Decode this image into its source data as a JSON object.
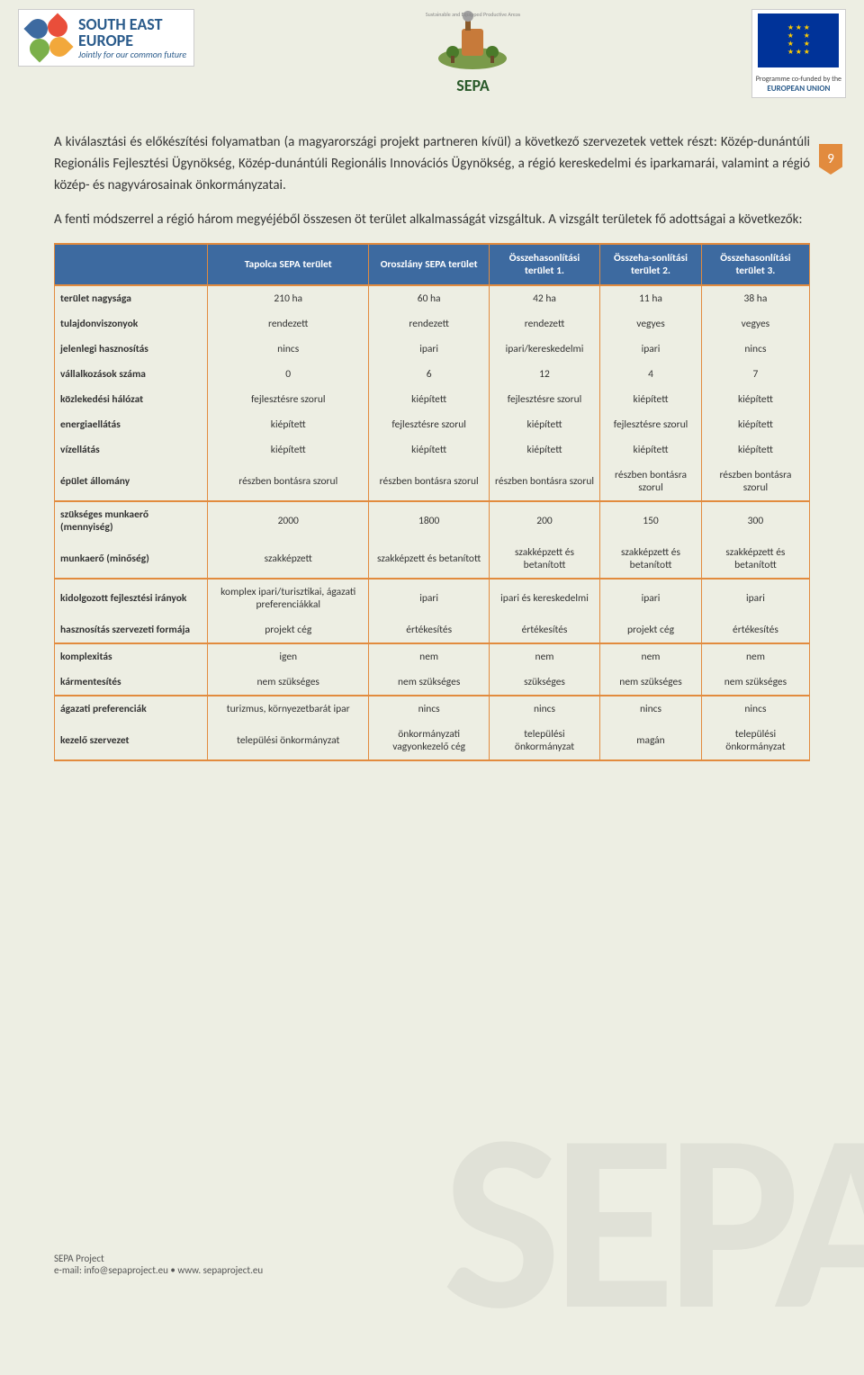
{
  "header": {
    "see_title": "SOUTH EAST",
    "see_title2": "EUROPE",
    "see_tagline": "Jointly for our common future",
    "sepa_label": "SEPA",
    "sepa_arc": "Sustainable and Equipped Productive Areas",
    "eu_caption1": "Programme co-funded by the",
    "eu_caption2": "EUROPEAN UNION"
  },
  "page_number": "9",
  "paragraphs": {
    "p1": "A kiválasztási és előkészítési folyamatban (a magyarországi projekt partneren kívül) a következő szervezetek vettek részt: Közép-dunántúli Regionális Fejlesztési Ügynökség, Közép-dunántúli Regionális Innovációs Ügynökség, a régió kereskedelmi és iparkamarái, valamint a régió közép- és nagyvárosainak önkormányzatai.",
    "p2": "A fenti módszerrel a régió három megyéjéből összesen öt terület alkalmasságát vizsgáltuk. A vizsgált területek fő adottságai a következők:"
  },
  "table": {
    "headers": [
      "",
      "Tapolca SEPA terület",
      "Oroszlány SEPA terület",
      "Összehasonlítási terület 1.",
      "Összeha-sonlítási terület 2.",
      "Összehasonlítási terület 3."
    ],
    "header_bg": "#3d6aa0",
    "border_color": "#e28b3e",
    "rows": [
      {
        "cells": [
          "terület nagysága",
          "210 ha",
          "60 ha",
          "42 ha",
          "11 ha",
          "38 ha"
        ]
      },
      {
        "cells": [
          "tulajdonviszonyok",
          "rendezett",
          "rendezett",
          "rendezett",
          "vegyes",
          "vegyes"
        ]
      },
      {
        "cells": [
          "jelenlegi hasznosítás",
          "nincs",
          "ipari",
          "ipari/kereskedelmi",
          "ipari",
          "nincs"
        ]
      },
      {
        "cells": [
          "vállalkozások száma",
          "0",
          "6",
          "12",
          "4",
          "7"
        ]
      },
      {
        "cells": [
          "közlekedési hálózat",
          "fejlesztésre szorul",
          "kiépített",
          "fejlesztésre szorul",
          "kiépített",
          "kiépített"
        ]
      },
      {
        "cells": [
          "energiaellátás",
          "kiépített",
          "fejlesztésre szorul",
          "kiépített",
          "fejlesztésre szorul",
          "kiépített"
        ]
      },
      {
        "cells": [
          "vízellátás",
          "kiépített",
          "kiépített",
          "kiépített",
          "kiépített",
          "kiépített"
        ]
      },
      {
        "cells": [
          "épület állomány",
          "részben bontásra szorul",
          "részben bontásra szorul",
          "részben bontásra szorul",
          "részben bontásra szorul",
          "részben bontásra szorul"
        ],
        "section_end": true
      },
      {
        "cells": [
          "szükséges munkaerő (mennyiség)",
          "2000",
          "1800",
          "200",
          "150",
          "300"
        ]
      },
      {
        "cells": [
          "munkaerő (minőség)",
          "szakképzett",
          "szakképzett és betanított",
          "szakképzett és betanított",
          "szakképzett és betanított",
          "szakképzett és betanított"
        ],
        "section_end": true
      },
      {
        "cells": [
          "kidolgozott fejlesztési irányok",
          "komplex ipari/turisztikai, ágazati preferenciákkal",
          "ipari",
          "ipari és kereskedelmi",
          "ipari",
          "ipari"
        ]
      },
      {
        "cells": [
          "hasznosítás szervezeti formája",
          "projekt cég",
          "értékesítés",
          "értékesítés",
          "projekt cég",
          "értékesítés"
        ],
        "section_end": true
      },
      {
        "cells": [
          "komplexitás",
          "igen",
          "nem",
          "nem",
          "nem",
          "nem"
        ]
      },
      {
        "cells": [
          "kármentesítés",
          "nem szükséges",
          "nem szükséges",
          "szükséges",
          "nem szükséges",
          "nem szükséges"
        ],
        "section_end": true
      },
      {
        "cells": [
          "ágazati preferenciák",
          "turizmus, környezetbarát ipar",
          "nincs",
          "nincs",
          "nincs",
          "nincs"
        ]
      },
      {
        "cells": [
          "kezelő szervezet",
          "települési önkormányzat",
          "önkormányzati vagyonkezelő cég",
          "települési önkormányzat",
          "magán",
          "települési önkormányzat"
        ]
      }
    ]
  },
  "footer": {
    "line1": "SEPA  Project",
    "line2": "e-mail: info@sepaproject.eu • www. sepaproject.eu"
  },
  "watermark": "SEPA",
  "colors": {
    "page_bg": "#edeee3",
    "accent_orange": "#e28b3e",
    "header_blue": "#3d6aa0"
  }
}
